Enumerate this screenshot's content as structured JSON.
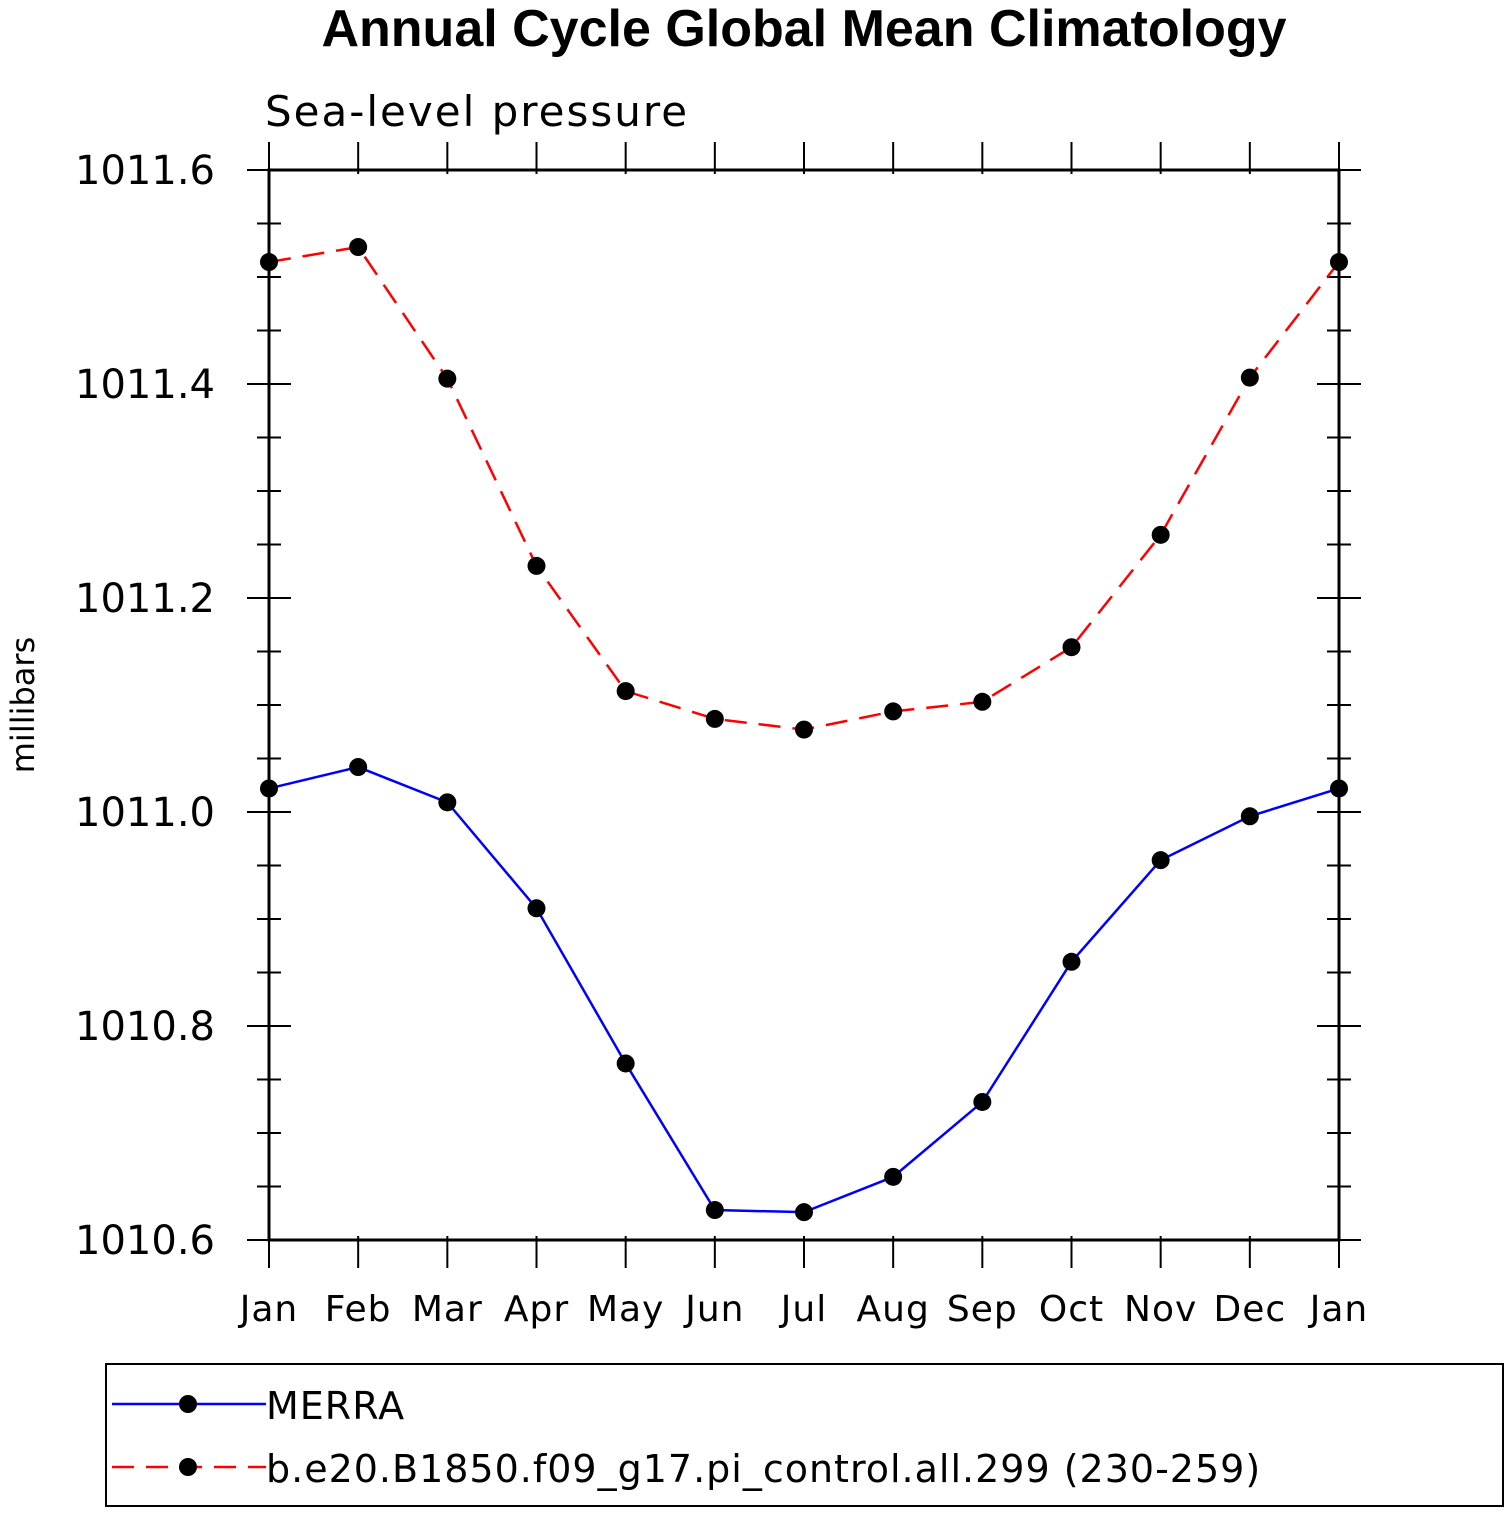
{
  "chart_data": {
    "type": "line",
    "title": "Annual Cycle Global Mean Climatology",
    "subtitle": "Sea-level pressure",
    "xlabel": "",
    "ylabel": "millibars",
    "categories": [
      "Jan",
      "Feb",
      "Mar",
      "Apr",
      "May",
      "Jun",
      "Jul",
      "Aug",
      "Sep",
      "Oct",
      "Nov",
      "Dec",
      "Jan"
    ],
    "ylim": [
      1010.6,
      1011.6
    ],
    "yticks": [
      "1010.6",
      "1010.8",
      "1011.0",
      "1011.2",
      "1011.4",
      "1011.6"
    ],
    "series": [
      {
        "name": "MERRA",
        "color": "#0000ff",
        "dash": "solid",
        "marker": "filled-circle",
        "values": [
          1011.022,
          1011.042,
          1011.009,
          1010.91,
          1010.765,
          1010.628,
          1010.626,
          1010.659,
          1010.729,
          1010.86,
          1010.955,
          1010.996,
          1011.022
        ]
      },
      {
        "name": "b.e20.B1850.f09_g17.pi_control.all.299 (230-259)",
        "color": "#ff0000",
        "dash": "dashed",
        "marker": "filled-circle",
        "values": [
          1011.514,
          1011.528,
          1011.405,
          1011.23,
          1011.113,
          1011.087,
          1011.077,
          1011.094,
          1011.103,
          1011.154,
          1011.259,
          1011.406,
          1011.514
        ]
      }
    ],
    "legend_position": "bottom"
  }
}
